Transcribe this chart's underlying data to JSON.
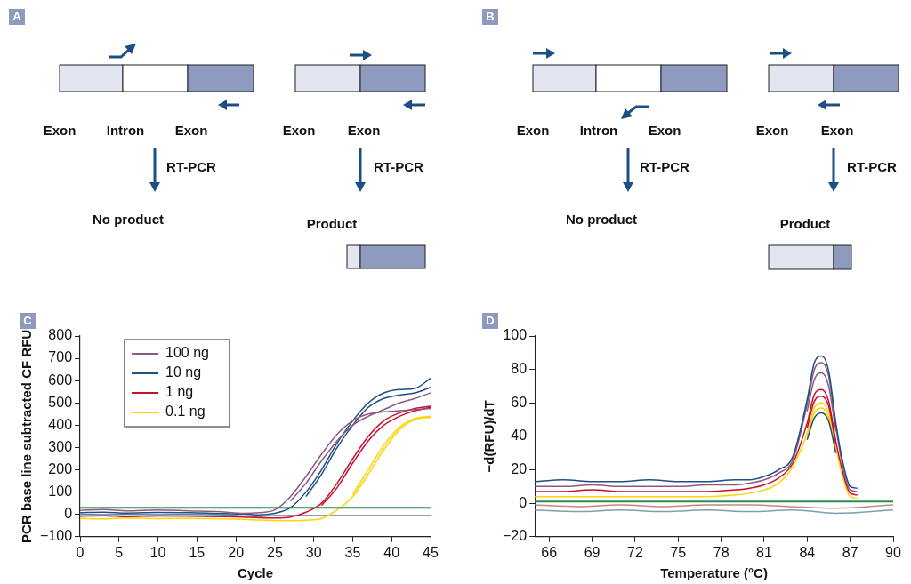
{
  "chart_data": [
    {
      "type": "other",
      "title": "A",
      "annotations": [
        "Exon",
        "Intron",
        "Exon",
        "RT-PCR",
        "No product",
        "Exon",
        "Exon",
        "RT-PCR",
        "Product"
      ]
    },
    {
      "type": "other",
      "title": "B",
      "annotations": [
        "Exon",
        "Intron",
        "Exon",
        "RT-PCR",
        "No product",
        "Exon",
        "Exon",
        "RT-PCR",
        "Product"
      ]
    },
    {
      "type": "line",
      "title": "C",
      "xlabel": "Cycle",
      "ylabel": "PCR base line subtracted CF RFU",
      "xlim": [
        0,
        45
      ],
      "xticks": [
        0,
        5,
        10,
        15,
        20,
        25,
        30,
        35,
        40,
        45
      ],
      "ylim": [
        -100,
        800
      ],
      "yticks": [
        -100,
        0,
        100,
        200,
        300,
        400,
        500,
        600,
        700,
        800
      ],
      "grid": false,
      "legend": "top left",
      "marker": "none",
      "line_style": "solid",
      "x": [
        0,
        3,
        6,
        10,
        14,
        18,
        21,
        23,
        25,
        27,
        29,
        31,
        33,
        35,
        37,
        39,
        41,
        43,
        45
      ],
      "series": [
        {
          "name": "100 ng",
          "color": "#8b5a83",
          "values": [
            18,
            22,
            16,
            20,
            16,
            12,
            5,
            8,
            20,
            80,
            170,
            270,
            360,
            420,
            450,
            460,
            465,
            470,
            475
          ]
        },
        {
          "color": "#8b5a83",
          "values": [
            null,
            null,
            null,
            null,
            null,
            null,
            null,
            null,
            null,
            60,
            140,
            240,
            330,
            400,
            440,
            470,
            500,
            520,
            545
          ]
        },
        {
          "name": "10 ng",
          "color": "#1f4e86",
          "values": [
            8,
            10,
            6,
            9,
            8,
            4,
            2,
            -2,
            5,
            30,
            100,
            200,
            320,
            420,
            500,
            545,
            560,
            565,
            610
          ]
        },
        {
          "color": "#1f4e86",
          "values": [
            null,
            null,
            null,
            null,
            null,
            null,
            null,
            null,
            null,
            null,
            80,
            180,
            300,
            400,
            480,
            520,
            535,
            545,
            570
          ]
        },
        {
          "name": "1 ng",
          "color": "#c8102e",
          "values": [
            -8,
            -6,
            -10,
            -7,
            -8,
            -10,
            -12,
            -15,
            -16,
            -12,
            10,
            50,
            140,
            250,
            350,
            420,
            455,
            475,
            485
          ]
        },
        {
          "color": "#c8102e",
          "values": [
            null,
            null,
            null,
            null,
            null,
            null,
            null,
            null,
            null,
            null,
            null,
            40,
            120,
            230,
            330,
            400,
            440,
            465,
            480
          ]
        },
        {
          "name": "0.1 ng",
          "color": "#ffd400",
          "values": [
            -18,
            -20,
            -16,
            -19,
            -18,
            -20,
            -22,
            -25,
            -27,
            -28,
            -26,
            -18,
            20,
            80,
            180,
            290,
            380,
            425,
            435
          ]
        },
        {
          "color": "#ffd400",
          "values": [
            null,
            null,
            null,
            null,
            null,
            null,
            null,
            null,
            null,
            null,
            null,
            null,
            null,
            90,
            200,
            310,
            390,
            430,
            440
          ]
        },
        {
          "color": "#6080a8",
          "values": [
            0,
            -1,
            1,
            -1,
            0,
            -1,
            -7,
            -9,
            -5,
            -5,
            -5,
            -5,
            -5,
            -5,
            -5,
            -5,
            -5,
            -5,
            -5
          ]
        }
      ],
      "ref_lines": [
        {
          "axis": "y",
          "value": 30,
          "color": "#2e8b57"
        }
      ]
    },
    {
      "type": "line",
      "title": "D",
      "xlabel": "Temperature (°C)",
      "ylabel": "−d(RFU)/dT",
      "xlim": [
        65,
        90
      ],
      "xticks": [
        66,
        69,
        72,
        75,
        78,
        81,
        84,
        87,
        90
      ],
      "ylim": [
        -20,
        100
      ],
      "yticks": [
        -20,
        0,
        20,
        40,
        60,
        80,
        100
      ],
      "grid": false,
      "marker": "none",
      "line_style": "solid",
      "x": [
        65,
        67,
        69,
        71,
        73,
        75,
        77,
        79,
        80,
        81,
        82,
        83,
        84,
        84.5,
        85,
        85.5,
        86,
        86.5,
        87,
        87.5
      ],
      "series": [
        {
          "color": "#1f4e86",
          "values": [
            13,
            14,
            13,
            13,
            14,
            13,
            13,
            14,
            14,
            16,
            20,
            28,
            62,
            84,
            88,
            79,
            48,
            24,
            10,
            9
          ]
        },
        {
          "color": "#1f4e86",
          "values": [
            null,
            null,
            null,
            null,
            null,
            null,
            null,
            null,
            null,
            null,
            null,
            null,
            38,
            51,
            54,
            49,
            30,
            null,
            null,
            null
          ]
        },
        {
          "color": "#8b5a83",
          "values": [
            10,
            10,
            11,
            10,
            10,
            10,
            11,
            11,
            12,
            14,
            18,
            26,
            59,
            80,
            84,
            76,
            46,
            21,
            8,
            7
          ]
        },
        {
          "color": "#8b5a83",
          "values": [
            null,
            null,
            null,
            null,
            null,
            null,
            null,
            null,
            null,
            null,
            null,
            null,
            55,
            74,
            78,
            70,
            43,
            null,
            null,
            null
          ]
        },
        {
          "color": "#c8102e",
          "values": [
            7,
            7,
            8,
            7,
            7,
            7,
            7,
            8,
            9,
            11,
            15,
            24,
            48,
            65,
            68,
            61,
            37,
            18,
            6,
            5
          ]
        },
        {
          "color": "#c8102e",
          "values": [
            null,
            null,
            null,
            null,
            null,
            null,
            null,
            null,
            null,
            null,
            null,
            null,
            45,
            61,
            64,
            58,
            35,
            null,
            null,
            null
          ]
        },
        {
          "color": "#ffd400",
          "values": [
            4,
            4,
            4,
            4,
            4,
            4,
            4,
            5,
            6,
            8,
            12,
            22,
            42,
            57,
            60,
            54,
            33,
            15,
            4,
            3
          ]
        },
        {
          "color": "#ffd400",
          "values": [
            null,
            null,
            null,
            null,
            null,
            null,
            null,
            null,
            null,
            null,
            null,
            null,
            40,
            54,
            57,
            51,
            31,
            null,
            null,
            null
          ]
        },
        {
          "x": [
            65,
            68,
            71,
            74,
            77,
            80,
            83,
            86,
            90
          ],
          "color": "#c08a80",
          "values": [
            -1,
            -2,
            -1,
            -2,
            -1,
            -1,
            -2,
            -3,
            -1
          ]
        },
        {
          "x": [
            65,
            68,
            71,
            74,
            77,
            80,
            83,
            86,
            90
          ],
          "color": "#7f9fb0",
          "values": [
            -4,
            -5,
            -4,
            -5,
            -4,
            -5,
            -4,
            -6,
            -4
          ]
        }
      ],
      "ref_lines": [
        {
          "axis": "y",
          "value": 1,
          "color": "#2e8b57"
        }
      ]
    }
  ]
}
